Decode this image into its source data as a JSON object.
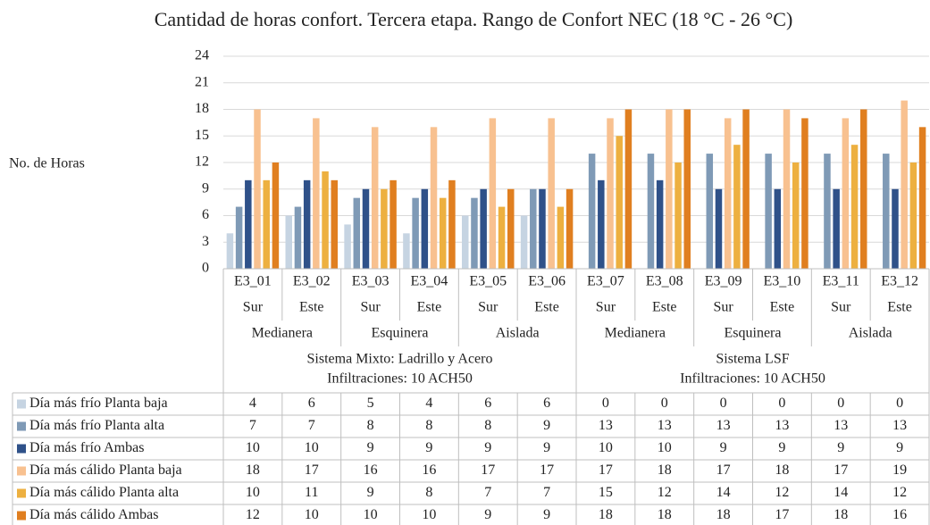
{
  "chart_data": {
    "type": "bar",
    "title": "Cantidad de horas confort. Tercera etapa. Rango de Confort NEC (18 °C - 26 °C)",
    "y_label": "No. de Horas",
    "categories": [
      "E3_01",
      "E3_02",
      "E3_03",
      "E3_04",
      "E3_05",
      "E3_06",
      "E3_07",
      "E3_08",
      "E3_09",
      "E3_10",
      "E3_11",
      "E3_12"
    ],
    "orientations": [
      "Sur",
      "Este",
      "Sur",
      "Este",
      "Sur",
      "Este",
      "Sur",
      "Este",
      "Sur",
      "Este",
      "Sur",
      "Este"
    ],
    "groups": [
      "Medianera",
      "Esquinera",
      "Aislada",
      "Medianera",
      "Esquinera",
      "Aislada"
    ],
    "systems": [
      {
        "name": "Sistema Mixto: Ladrillo y Acero",
        "infiltration": "Infiltraciones: 10 ACH50"
      },
      {
        "name": "Sistema LSF",
        "infiltration": "Infiltraciones: 10 ACH50"
      }
    ],
    "series": [
      {
        "name": "Día más frío Planta baja",
        "color": "#c6d4e2",
        "values": [
          4,
          6,
          5,
          4,
          6,
          6,
          0,
          0,
          0,
          0,
          0,
          0
        ]
      },
      {
        "name": "Día más frío Planta alta",
        "color": "#7f9ab6",
        "values": [
          7,
          7,
          8,
          8,
          8,
          9,
          13,
          13,
          13,
          13,
          13,
          13
        ]
      },
      {
        "name": "Día más frío Ambas",
        "color": "#2f5189",
        "values": [
          10,
          10,
          9,
          9,
          9,
          9,
          10,
          10,
          9,
          9,
          9,
          9
        ]
      },
      {
        "name": "Día más cálido Planta baja",
        "color": "#f8c190",
        "values": [
          18,
          17,
          16,
          16,
          17,
          17,
          17,
          18,
          17,
          18,
          17,
          19
        ]
      },
      {
        "name": "Día más cálido Planta alta",
        "color": "#edb040",
        "values": [
          10,
          11,
          9,
          8,
          7,
          7,
          15,
          12,
          14,
          12,
          14,
          12
        ]
      },
      {
        "name": "Día más cálido Ambas",
        "color": "#e07f20",
        "values": [
          12,
          10,
          10,
          10,
          9,
          9,
          18,
          18,
          18,
          17,
          18,
          16
        ]
      }
    ],
    "ylim": [
      0,
      24
    ],
    "yticks": [
      0,
      3,
      6,
      9,
      12,
      15,
      18,
      21,
      24
    ],
    "grid": true
  }
}
